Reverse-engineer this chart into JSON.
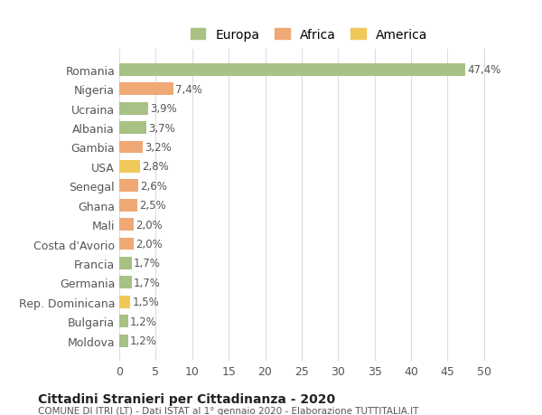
{
  "categories": [
    "Moldova",
    "Bulgaria",
    "Rep. Dominicana",
    "Germania",
    "Francia",
    "Costa d'Avorio",
    "Mali",
    "Ghana",
    "Senegal",
    "USA",
    "Gambia",
    "Albania",
    "Ucraina",
    "Nigeria",
    "Romania"
  ],
  "values": [
    1.2,
    1.2,
    1.5,
    1.7,
    1.7,
    2.0,
    2.0,
    2.5,
    2.6,
    2.8,
    3.2,
    3.7,
    3.9,
    7.4,
    47.4
  ],
  "labels": [
    "1,2%",
    "1,2%",
    "1,5%",
    "1,7%",
    "1,7%",
    "2,0%",
    "2,0%",
    "2,5%",
    "2,6%",
    "2,8%",
    "3,2%",
    "3,7%",
    "3,9%",
    "7,4%",
    "47,4%"
  ],
  "colors": [
    "#a8c285",
    "#a8c285",
    "#f0c85a",
    "#a8c285",
    "#a8c285",
    "#f0a875",
    "#f0a875",
    "#f0a875",
    "#f0a875",
    "#f0c85a",
    "#f0a875",
    "#a8c285",
    "#a8c285",
    "#f0a875",
    "#a8c285"
  ],
  "continent": [
    "Europa",
    "Europa",
    "America",
    "Europa",
    "Europa",
    "Africa",
    "Africa",
    "Africa",
    "Africa",
    "America",
    "Africa",
    "Europa",
    "Europa",
    "Africa",
    "Europa"
  ],
  "legend": {
    "Europa": "#a8c285",
    "Africa": "#f0a875",
    "America": "#f0c85a"
  },
  "xlim": [
    0,
    52
  ],
  "xticks": [
    0,
    5,
    10,
    15,
    20,
    25,
    30,
    35,
    40,
    45,
    50
  ],
  "title": "Cittadini Stranieri per Cittadinanza - 2020",
  "subtitle": "COMUNE DI ITRI (LT) - Dati ISTAT al 1° gennaio 2020 - Elaborazione TUTTITALIA.IT",
  "bg_color": "#ffffff",
  "grid_color": "#dddddd",
  "bar_height": 0.65
}
